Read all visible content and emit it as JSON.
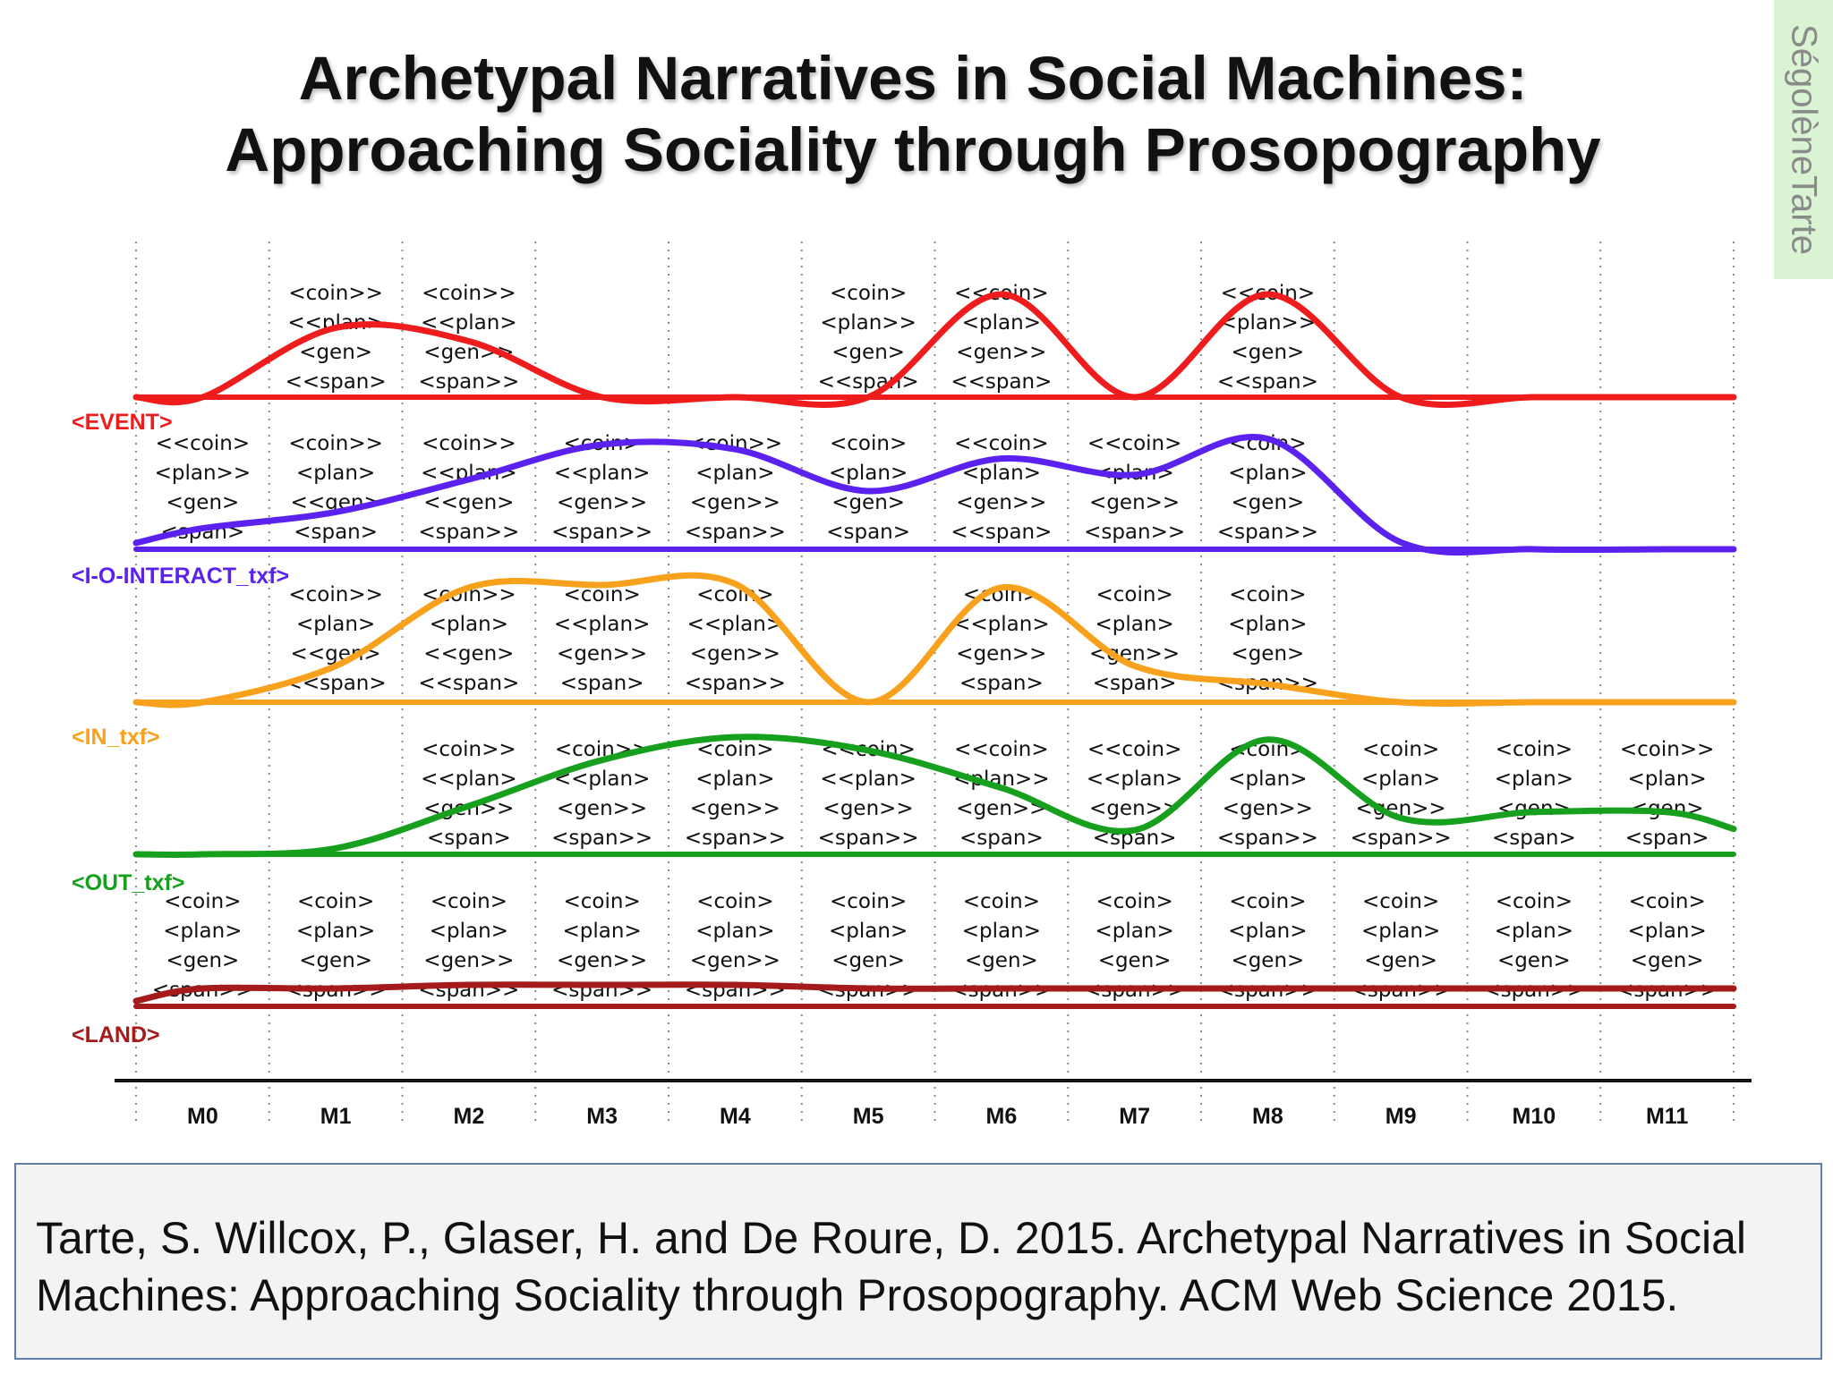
{
  "slide": {
    "title_lines": [
      "Archetypal Narratives in Social Machines:",
      "Approaching Sociality through Prosopography"
    ],
    "author_tab": "SégolèneTarte",
    "citation_lines": [
      "Tarte, S. Willcox, P., Glaser, H. and De Roure, D. 2015. Archetypal Narratives in Social",
      "Machines: Approaching Sociality through Prosopography. ACM Web Science 2015."
    ]
  },
  "chart_data": {
    "type": "line",
    "title": "",
    "categories": [
      "M0",
      "M1",
      "M2",
      "M3",
      "M4",
      "M5",
      "M6",
      "M7",
      "M8",
      "M9",
      "M10",
      "M11"
    ],
    "y_unit": "relative intensity (0-1)",
    "grid": "vertical dotted lines at category boundaries",
    "series": [
      {
        "name": "<EVENT>",
        "color": "#ee1c1c",
        "peak_intensity": [
          0.0,
          0.62,
          0.5,
          0.0,
          0.0,
          0.0,
          0.92,
          0.0,
          0.92,
          0.0,
          0.0,
          0.0
        ],
        "notes": [
          null,
          [
            "<coin>>",
            "<<plan>",
            "<gen>",
            "<<span>"
          ],
          [
            "<coin>>",
            "<<plan>",
            "<gen>>",
            "<span>>"
          ],
          null,
          null,
          [
            "<coin>",
            "<plan>>",
            "<gen>",
            "<<span>"
          ],
          [
            "<<coin>",
            "<plan>",
            "<gen>>",
            "<<span>"
          ],
          null,
          [
            "<<coin>",
            "<plan>>",
            "<gen>",
            "<<span>"
          ],
          null,
          null,
          null
        ]
      },
      {
        "name": "<I-O-INTERACT_txf>",
        "color": "#5b22ef",
        "peak_intensity": [
          0.18,
          0.32,
          0.6,
          0.9,
          0.86,
          0.5,
          0.78,
          0.64,
          0.95,
          0.06,
          0.0,
          0.0
        ],
        "notes": [
          [
            "<<coin>",
            "<plan>>",
            "<gen>",
            "<span>"
          ],
          [
            "<coin>>",
            "<plan>",
            "<<gen>",
            "<span>"
          ],
          [
            "<coin>>",
            "<<plan>",
            "<<gen>",
            "<span>>"
          ],
          [
            "<coin>",
            "<<plan>",
            "<gen>>",
            "<span>>"
          ],
          [
            "<coin>>",
            "<plan>",
            "<gen>>",
            "<span>>"
          ],
          [
            "<coin>",
            "<plan>",
            "<gen>",
            "<span>"
          ],
          [
            "<<coin>",
            "<plan>",
            "<gen>>",
            "<<span>"
          ],
          [
            "<<coin>",
            "<plan>",
            "<gen>>",
            "<span>>"
          ],
          [
            "<coin>",
            "<plan>",
            "<gen>",
            "<span>>"
          ],
          null,
          null,
          null
        ]
      },
      {
        "name": "<IN_txf>",
        "color": "#f7a11c",
        "peak_intensity": [
          0.0,
          0.3,
          0.95,
          0.97,
          0.98,
          0.0,
          0.95,
          0.3,
          0.15,
          0.0,
          0.0,
          0.0
        ],
        "notes": [
          null,
          [
            "<coin>>",
            "<plan>",
            "<<gen>",
            "<<span>"
          ],
          [
            "<coin>>",
            "<plan>",
            "<<gen>",
            "<<span>"
          ],
          [
            "<coin>",
            "<<plan>",
            "<gen>>",
            "<span>"
          ],
          [
            "<coin>",
            "<<plan>",
            "<gen>>",
            "<span>>"
          ],
          null,
          [
            "<coin>",
            "<<plan>",
            "<gen>>",
            "<span>"
          ],
          [
            "<coin>",
            "<plan>",
            "<gen>>",
            "<span>"
          ],
          [
            "<coin>",
            "<plan>",
            "<gen>",
            "<span>>"
          ],
          null,
          null,
          null
        ]
      },
      {
        "name": "<OUT_txf>",
        "color": "#16a01e",
        "peak_intensity": [
          0.0,
          0.05,
          0.4,
          0.78,
          0.97,
          0.86,
          0.55,
          0.2,
          0.95,
          0.3,
          0.35,
          0.35
        ],
        "notes": [
          null,
          null,
          [
            "<coin>>",
            "<<plan>",
            "<gen>>",
            "<span>"
          ],
          [
            "<coin>>",
            "<<plan>",
            "<gen>>",
            "<span>>"
          ],
          [
            "<coin>",
            "<plan>",
            "<gen>>",
            "<span>>"
          ],
          [
            "<<coin>",
            "<<plan>",
            "<gen>>",
            "<span>>"
          ],
          [
            "<<coin>",
            "<plan>>",
            "<gen>>",
            "<span>"
          ],
          [
            "<<coin>",
            "<<plan>",
            "<gen>>",
            "<span>"
          ],
          [
            "<coin>",
            "<plan>",
            "<gen>>",
            "<span>>"
          ],
          [
            "<coin>",
            "<plan>",
            "<gen>>",
            "<span>>"
          ],
          [
            "<coin>",
            "<plan>",
            "<gen>",
            "<span>"
          ],
          [
            "<coin>>",
            "<plan>",
            "<gen>",
            "<span>"
          ]
        ]
      },
      {
        "name": "<LAND>",
        "color": "#a51a1a",
        "peak_intensity": [
          0.5,
          0.5,
          0.6,
          0.6,
          0.6,
          0.5,
          0.5,
          0.5,
          0.5,
          0.5,
          0.5,
          0.5
        ],
        "notes": [
          [
            "<coin>",
            "<plan>",
            "<gen>",
            "<span>>"
          ],
          [
            "<coin>",
            "<plan>",
            "<gen>",
            "<span>>"
          ],
          [
            "<coin>",
            "<plan>",
            "<gen>>",
            "<span>>"
          ],
          [
            "<coin>",
            "<plan>",
            "<gen>>",
            "<span>>"
          ],
          [
            "<coin>",
            "<plan>",
            "<gen>>",
            "<span>>"
          ],
          [
            "<coin>",
            "<plan>",
            "<gen>",
            "<span>>"
          ],
          [
            "<coin>",
            "<plan>",
            "<gen>",
            "<span>>"
          ],
          [
            "<coin>",
            "<plan>",
            "<gen>",
            "<span>>"
          ],
          [
            "<coin>",
            "<plan>",
            "<gen>",
            "<span>>"
          ],
          [
            "<coin>",
            "<plan>",
            "<gen>",
            "<span>>"
          ],
          [
            "<coin>",
            "<plan>",
            "<gen>",
            "<span>>"
          ],
          [
            "<coin>",
            "<plan>",
            "<gen>",
            "<span>>"
          ]
        ]
      }
    ]
  }
}
